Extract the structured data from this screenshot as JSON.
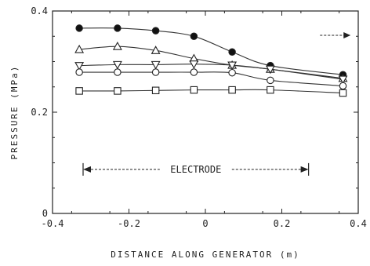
{
  "chart_data": {
    "type": "line",
    "title": "",
    "xlabel": "DISTANCE ALONG GENERATOR (m)",
    "ylabel": "PRESSURE (MPa)",
    "xlim": [
      -0.4,
      0.4
    ],
    "ylim": [
      0,
      0.4
    ],
    "x_ticks": [
      "-0.4",
      "-0.2",
      "0",
      "0.2",
      "0.4"
    ],
    "y_ticks": [
      "0",
      "0.2",
      "0.4"
    ],
    "grid": false,
    "legend": "none",
    "annotation": {
      "text": "ELECTRODE",
      "x_start": -0.32,
      "x_end": 0.27,
      "y": 0.087
    },
    "flow_arrow": {
      "direction": "right",
      "x_start": 0.3,
      "x_end": 0.38,
      "y": 0.352
    },
    "series": [
      {
        "marker": "filled-circle",
        "x": [
          -0.33,
          -0.23,
          -0.13,
          -0.03,
          0.07,
          0.17,
          0.36
        ],
        "y": [
          0.366,
          0.366,
          0.361,
          0.35,
          0.319,
          0.292,
          0.274
        ]
      },
      {
        "marker": "triangle-up",
        "x": [
          -0.33,
          -0.23,
          -0.13,
          -0.03,
          0.07,
          0.17,
          0.36
        ],
        "y": [
          0.324,
          0.33,
          0.322,
          0.306,
          0.293,
          0.285,
          0.267
        ]
      },
      {
        "marker": "triangle-down",
        "x": [
          -0.33,
          -0.23,
          -0.13,
          -0.03,
          0.07,
          0.17,
          0.36
        ],
        "y": [
          0.292,
          0.294,
          0.294,
          0.295,
          0.293,
          0.285,
          0.265
        ]
      },
      {
        "marker": "open-circle",
        "x": [
          -0.33,
          -0.23,
          -0.13,
          -0.03,
          0.07,
          0.17,
          0.36
        ],
        "y": [
          0.279,
          0.279,
          0.279,
          0.279,
          0.278,
          0.263,
          0.252
        ]
      },
      {
        "marker": "square",
        "x": [
          -0.33,
          -0.23,
          -0.13,
          -0.03,
          0.07,
          0.17,
          0.36
        ],
        "y": [
          0.242,
          0.242,
          0.243,
          0.244,
          0.244,
          0.244,
          0.238
        ]
      }
    ]
  }
}
